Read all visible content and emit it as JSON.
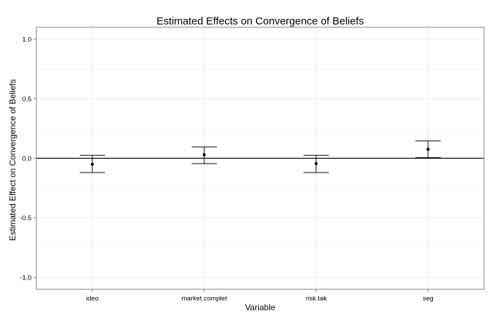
{
  "chart_data": {
    "type": "errorbar",
    "title": "Estimated Effects on Convergence of Beliefs",
    "xlabel": "Variable",
    "ylabel": "Estimated Effect on Convergence of Beliefs",
    "categories": [
      "ideo",
      "market.complet",
      "risk.tak",
      "seg"
    ],
    "estimates": [
      -0.05,
      0.03,
      -0.045,
      0.075
    ],
    "lower": [
      -0.12,
      -0.045,
      -0.12,
      0.005
    ],
    "upper": [
      0.025,
      0.095,
      0.025,
      0.145
    ],
    "ylim": [
      -1.1,
      1.1
    ],
    "yticks": [
      -1.0,
      -0.5,
      0.0,
      0.5,
      1.0
    ],
    "ytick_labels": [
      "-1.0",
      "-0.5",
      "0.0",
      "0.5",
      "1.0"
    ],
    "reference_line": 0,
    "grid": true,
    "colors": {
      "grid": "#ebebeb",
      "panel_border": "#7f7f7f",
      "marks": "#000000"
    }
  }
}
